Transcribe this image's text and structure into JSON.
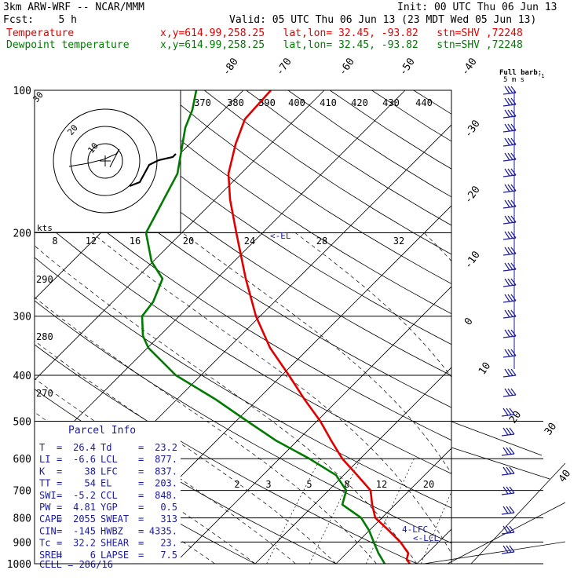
{
  "header": {
    "model": "3km ARW-WRF -- NCAR/MMM",
    "init": "Init: 00 UTC Thu 06 Jun 13",
    "fcst": "Fcst:    5 h",
    "valid": "Valid: 05 UTC Thu 06 Jun 13 (23 MDT Wed 05 Jun 13)",
    "temp_name": "Temperature",
    "dew_name": "Dewpoint temperature",
    "loc": "x,y=614.99,258.25   lat,lon= 32.45, -93.82   stn=SHV ,72248"
  },
  "barb_label": "Full barb:",
  "barb_unit": "5 m s",
  "barb_exp": "-1",
  "kts_label": "kts",
  "parcel": {
    "title": "Parcel Info",
    "rows": [
      [
        "T",
        "26.4",
        "Td",
        "23.2"
      ],
      [
        "LI",
        "-6.6",
        "LCL",
        "877."
      ],
      [
        "K",
        "38",
        "LFC",
        "837."
      ],
      [
        "TT",
        "54",
        "EL",
        "203."
      ],
      [
        "SWI",
        "-5.2",
        "CCL",
        "848."
      ],
      [
        "PW",
        "4.81",
        "YGP",
        "0.5"
      ],
      [
        "CAPE",
        "2055",
        "SWEAT",
        "313"
      ],
      [
        "CIN",
        "-145",
        "HWBZ",
        "4335."
      ],
      [
        "Tc",
        "32.2",
        "SHEAR",
        "23."
      ],
      [
        "SREH",
        "6",
        "LAPSE",
        "7.5"
      ]
    ],
    "cell": "CELL = 286/16"
  },
  "chart_data": {
    "type": "line",
    "title": "",
    "y_axis": "pressure (hPa), log scale",
    "ylim": [
      1000,
      100
    ],
    "pressure_ticks": [
      100,
      200,
      300,
      400,
      500,
      600,
      700,
      800,
      900,
      1000
    ],
    "skew_isotherm_labels": [
      -80,
      -70,
      -60,
      -50,
      -40,
      -30,
      -20,
      -10,
      0,
      10,
      20,
      30,
      40
    ],
    "theta_e_labels": [
      370,
      380,
      390,
      400,
      410,
      420,
      430,
      440
    ],
    "theta_labels": [
      290,
      280,
      270
    ],
    "mixing_ratio_labels_upper": [
      8,
      12,
      16,
      20,
      24,
      28,
      32
    ],
    "mixing_ratio_labels_lower": [
      2,
      3,
      5,
      8,
      12,
      20
    ],
    "parcel_labels": [
      "<-EL",
      "4-LFC",
      "<-LCL"
    ],
    "series": [
      {
        "name": "Temperature",
        "color": "#e00000",
        "points": [
          [
            100,
            345
          ],
          [
            115,
            312
          ],
          [
            130,
            300
          ],
          [
            150,
            291
          ],
          [
            170,
            293
          ],
          [
            200,
            301
          ],
          [
            250,
            313
          ],
          [
            300,
            326
          ],
          [
            350,
            344
          ],
          [
            400,
            368
          ],
          [
            450,
            388
          ],
          [
            500,
            408
          ],
          [
            550,
            422
          ],
          [
            600,
            436
          ],
          [
            650,
            455
          ],
          [
            700,
            472
          ],
          [
            750,
            474
          ],
          [
            800,
            478
          ],
          [
            850,
            495
          ],
          [
            900,
            510
          ],
          [
            950,
            520
          ],
          [
            980,
            518
          ],
          [
            1000,
            522
          ]
        ]
      },
      {
        "name": "Dewpoint temperature",
        "color": "#007a00",
        "points": [
          [
            100,
            250
          ],
          [
            110,
            245
          ],
          [
            120,
            236
          ],
          [
            150,
            226
          ],
          [
            200,
            186
          ],
          [
            230,
            193
          ],
          [
            250,
            207
          ],
          [
            280,
            195
          ],
          [
            300,
            181
          ],
          [
            330,
            182
          ],
          [
            350,
            189
          ],
          [
            400,
            224
          ],
          [
            450,
            275
          ],
          [
            500,
            315
          ],
          [
            550,
            352
          ],
          [
            600,
            394
          ],
          [
            650,
            428
          ],
          [
            700,
            441
          ],
          [
            750,
            436
          ],
          [
            800,
            460
          ],
          [
            850,
            470
          ],
          [
            900,
            476
          ],
          [
            950,
            482
          ],
          [
            1000,
            490
          ]
        ]
      }
    ],
    "wind_barbs_x": [
      633,
      641
    ],
    "hodograph_rings": [
      10,
      20,
      30
    ]
  }
}
